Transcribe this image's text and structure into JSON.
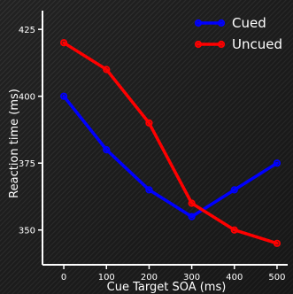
{
  "chart_data": {
    "type": "line",
    "title": "",
    "xlabel": "Cue Target SOA (ms)",
    "ylabel": "Reaction time (ms)",
    "x": [
      0,
      100,
      200,
      300,
      400,
      500
    ],
    "xticks": [
      0,
      100,
      200,
      300,
      400,
      500
    ],
    "yticks": [
      350,
      375,
      400,
      425
    ],
    "xlim": [
      -50,
      525
    ],
    "ylim": [
      337,
      432
    ],
    "grid": false,
    "legend": "top-right",
    "series": [
      {
        "name": "Cued",
        "color": "#0000ff",
        "values": [
          400,
          380,
          365,
          355,
          365,
          375
        ]
      },
      {
        "name": "Uncued",
        "color": "#ff0000",
        "values": [
          420,
          410,
          390,
          360,
          350,
          345
        ]
      }
    ]
  }
}
